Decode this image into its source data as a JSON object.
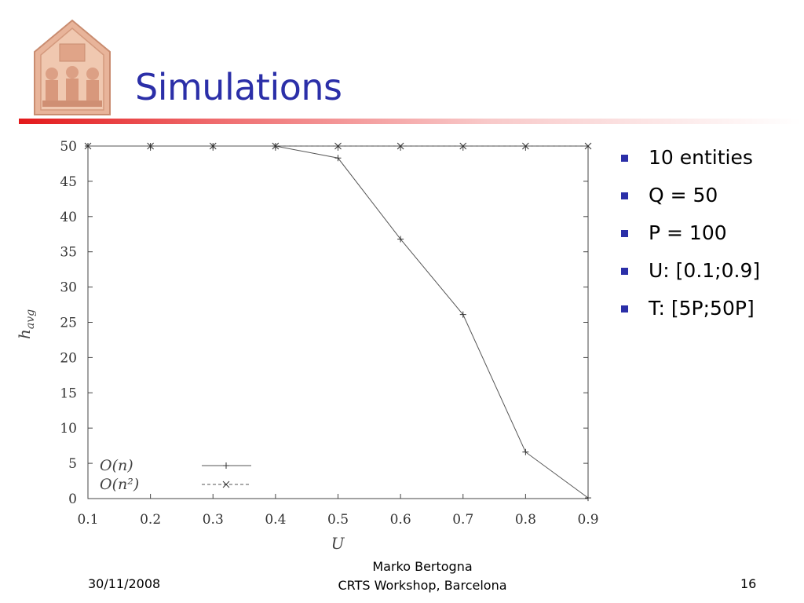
{
  "slide": {
    "title": "Simulations",
    "accent_color": "#2b2fa8",
    "rule_color": "#e3191b"
  },
  "logo": {
    "icon": "bas-relief-plaque-icon"
  },
  "bullets": [
    {
      "text": "10 entities"
    },
    {
      "text": "Q = 50"
    },
    {
      "text": "P = 100"
    },
    {
      "text": "U: [0.1;0.9]"
    },
    {
      "text": "T: [5P;50P]"
    }
  ],
  "footer": {
    "date": "30/11/2008",
    "author": "Marko Bertogna",
    "event": "CRTS Workshop, Barcelona",
    "page": "16"
  },
  "chart_data": {
    "type": "line",
    "xlabel": "U",
    "ylabel": "h_avg",
    "xlim": [
      0.1,
      0.9
    ],
    "ylim": [
      0,
      50
    ],
    "x_ticks": [
      "0.1",
      "0.2",
      "0.3",
      "0.4",
      "0.5",
      "0.6",
      "0.7",
      "0.8",
      "0.9"
    ],
    "y_ticks": [
      "0",
      "5",
      "10",
      "15",
      "20",
      "25",
      "30",
      "35",
      "40",
      "45",
      "50"
    ],
    "x": [
      0.1,
      0.2,
      0.3,
      0.4,
      0.5,
      0.6,
      0.7,
      0.8,
      0.9
    ],
    "grid": false,
    "legend_position": "bottom-left",
    "series": [
      {
        "name": "O(n)",
        "marker": "plus",
        "line": "solid",
        "values": [
          50,
          50,
          50,
          50,
          48.3,
          36.8,
          26.1,
          6.6,
          0.1
        ]
      },
      {
        "name": "O(n²)",
        "marker": "cross",
        "line": "dashed",
        "values": [
          50,
          50,
          50,
          50,
          50,
          50,
          50,
          50,
          50
        ]
      }
    ]
  }
}
